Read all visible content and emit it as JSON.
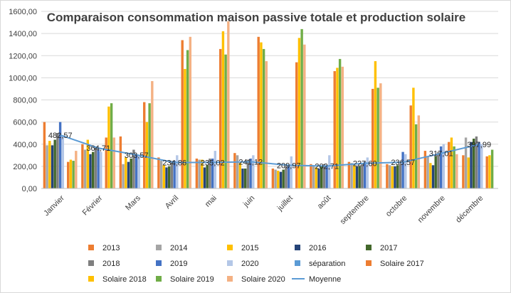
{
  "chart_data": {
    "type": "bar",
    "title": "Comparaison consommation maison passive totale et production solaire",
    "categories": [
      "Janvier",
      "Février",
      "Mars",
      "Avril",
      "mai",
      "juin",
      "juillet",
      "août",
      "septembre",
      "octobre",
      "novembre",
      "décembre"
    ],
    "ylim": [
      0,
      1600
    ],
    "yticks": [
      "0,00",
      "200,00",
      "400,00",
      "600,00",
      "800,00",
      "1000,00",
      "1200,00",
      "1400,00",
      "1600,00"
    ],
    "grid": true,
    "legend_position": "bottom",
    "series": [
      {
        "name": "2013",
        "color": "#ED7D31",
        "values": [
          600,
          400,
          470,
          280,
          270,
          320,
          180,
          220,
          240,
          220,
          340,
          300
        ]
      },
      {
        "name": "2014",
        "color": "#A5A5A5",
        "values": [
          390,
          350,
          220,
          250,
          260,
          300,
          170,
          200,
          230,
          210,
          290,
          460
        ]
      },
      {
        "name": "2015",
        "color": "#FFC000",
        "values": [
          430,
          440,
          280,
          210,
          260,
          230,
          160,
          190,
          210,
          200,
          230,
          280
        ]
      },
      {
        "name": "2016",
        "color": "#264478",
        "values": [
          390,
          310,
          240,
          190,
          190,
          180,
          150,
          180,
          200,
          200,
          210,
          420
        ]
      },
      {
        "name": "2017",
        "color": "#43682B",
        "values": [
          440,
          330,
          270,
          200,
          210,
          180,
          170,
          200,
          200,
          210,
          290,
          450
        ]
      },
      {
        "name": "2018",
        "color": "#7F7F7F",
        "values": [
          500,
          380,
          350,
          250,
          270,
          260,
          200,
          220,
          220,
          220,
          330,
          470
        ]
      },
      {
        "name": "2019",
        "color": "#4472C4",
        "values": [
          600,
          350,
          300,
          250,
          270,
          270,
          200,
          210,
          240,
          330,
          380,
          420
        ]
      },
      {
        "name": "2020",
        "color": "#B4C7E7",
        "values": [
          480,
          330,
          300,
          300,
          340,
          300,
          290,
          300,
          280,
          310,
          400,
          400
        ]
      },
      {
        "name": "séparation",
        "color": "#5B9BD5",
        "values": [
          0,
          0,
          0,
          0,
          0,
          0,
          0,
          0,
          0,
          0,
          0,
          0
        ]
      },
      {
        "name": "Solaire 2017",
        "color": "#ED7D31",
        "values": [
          240,
          460,
          780,
          1340,
          1260,
          1370,
          1140,
          1060,
          900,
          750,
          420,
          290
        ]
      },
      {
        "name": "Solaire 2018",
        "color": "#FFC000",
        "values": [
          260,
          740,
          600,
          1080,
          1420,
          1320,
          1360,
          1090,
          1150,
          910,
          460,
          300
        ]
      },
      {
        "name": "Solaire 2019",
        "color": "#70AD47",
        "values": [
          250,
          770,
          770,
          1250,
          1210,
          1260,
          1440,
          1170,
          910,
          580,
          380,
          350
        ]
      },
      {
        "name": "Solaire 2020",
        "color": "#F4B183",
        "values": [
          340,
          460,
          970,
          1370,
          1510,
          1150,
          1300,
          1100,
          950,
          660,
          310,
          0
        ]
      }
    ],
    "line": {
      "name": "Moyenne",
      "color": "#5B9BD5",
      "values": [
        482.57,
        364.71,
        303.57,
        234.86,
        235.02,
        241.12,
        209.97,
        202.71,
        227.6,
        236.57,
        317.01,
        397.99
      ],
      "labels": [
        "482,57",
        "364,71",
        "303,57",
        "234,86",
        "235,02",
        "241,12",
        "209,97",
        "202,71",
        "227,60",
        "236,57",
        "317,01",
        "397,99"
      ]
    }
  }
}
